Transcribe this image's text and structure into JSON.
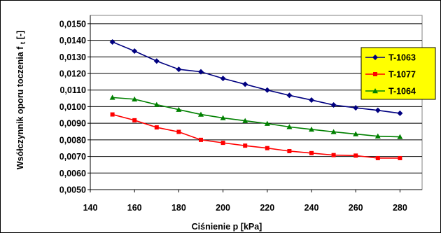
{
  "chart_data": {
    "type": "line",
    "title": "",
    "xlabel": "Ciśnienie p [kPa]",
    "ylabel_main": "Wsółczynnik oporu toczenia f",
    "ylabel_sub": "t",
    "ylabel_unit": " [-]",
    "x": [
      150,
      160,
      170,
      180,
      190,
      200,
      210,
      220,
      230,
      240,
      250,
      260,
      270,
      280
    ],
    "xlim": [
      140,
      290
    ],
    "ylim": [
      0.005,
      0.0155
    ],
    "xticks": [
      "140",
      "160",
      "180",
      "200",
      "220",
      "240",
      "260",
      "280"
    ],
    "yticks": [
      "0,0050",
      "0,0060",
      "0,0070",
      "0,0080",
      "0,0090",
      "0,0100",
      "0,0110",
      "0,0120",
      "0,0130",
      "0,0140",
      "0,0150"
    ],
    "grid": "horizontal",
    "legend_position": "right",
    "series": [
      {
        "name": "T-1063",
        "color": "#000080",
        "marker": "diamond",
        "values": [
          0.0139,
          0.01335,
          0.01275,
          0.01225,
          0.0121,
          0.0117,
          0.01135,
          0.011,
          0.01068,
          0.0104,
          0.0101,
          0.00993,
          0.00978,
          0.0096
        ]
      },
      {
        "name": "T-1077",
        "color": "#ff0000",
        "marker": "square",
        "values": [
          0.00953,
          0.00918,
          0.00875,
          0.00848,
          0.008,
          0.00782,
          0.00765,
          0.0075,
          0.00732,
          0.0072,
          0.00708,
          0.00705,
          0.0069,
          0.0069
        ]
      },
      {
        "name": "T-1064",
        "color": "#008000",
        "marker": "triangle",
        "values": [
          0.01055,
          0.01045,
          0.01012,
          0.00982,
          0.00953,
          0.00932,
          0.00915,
          0.00898,
          0.00878,
          0.00863,
          0.00848,
          0.00835,
          0.00822,
          0.00818
        ]
      }
    ]
  }
}
